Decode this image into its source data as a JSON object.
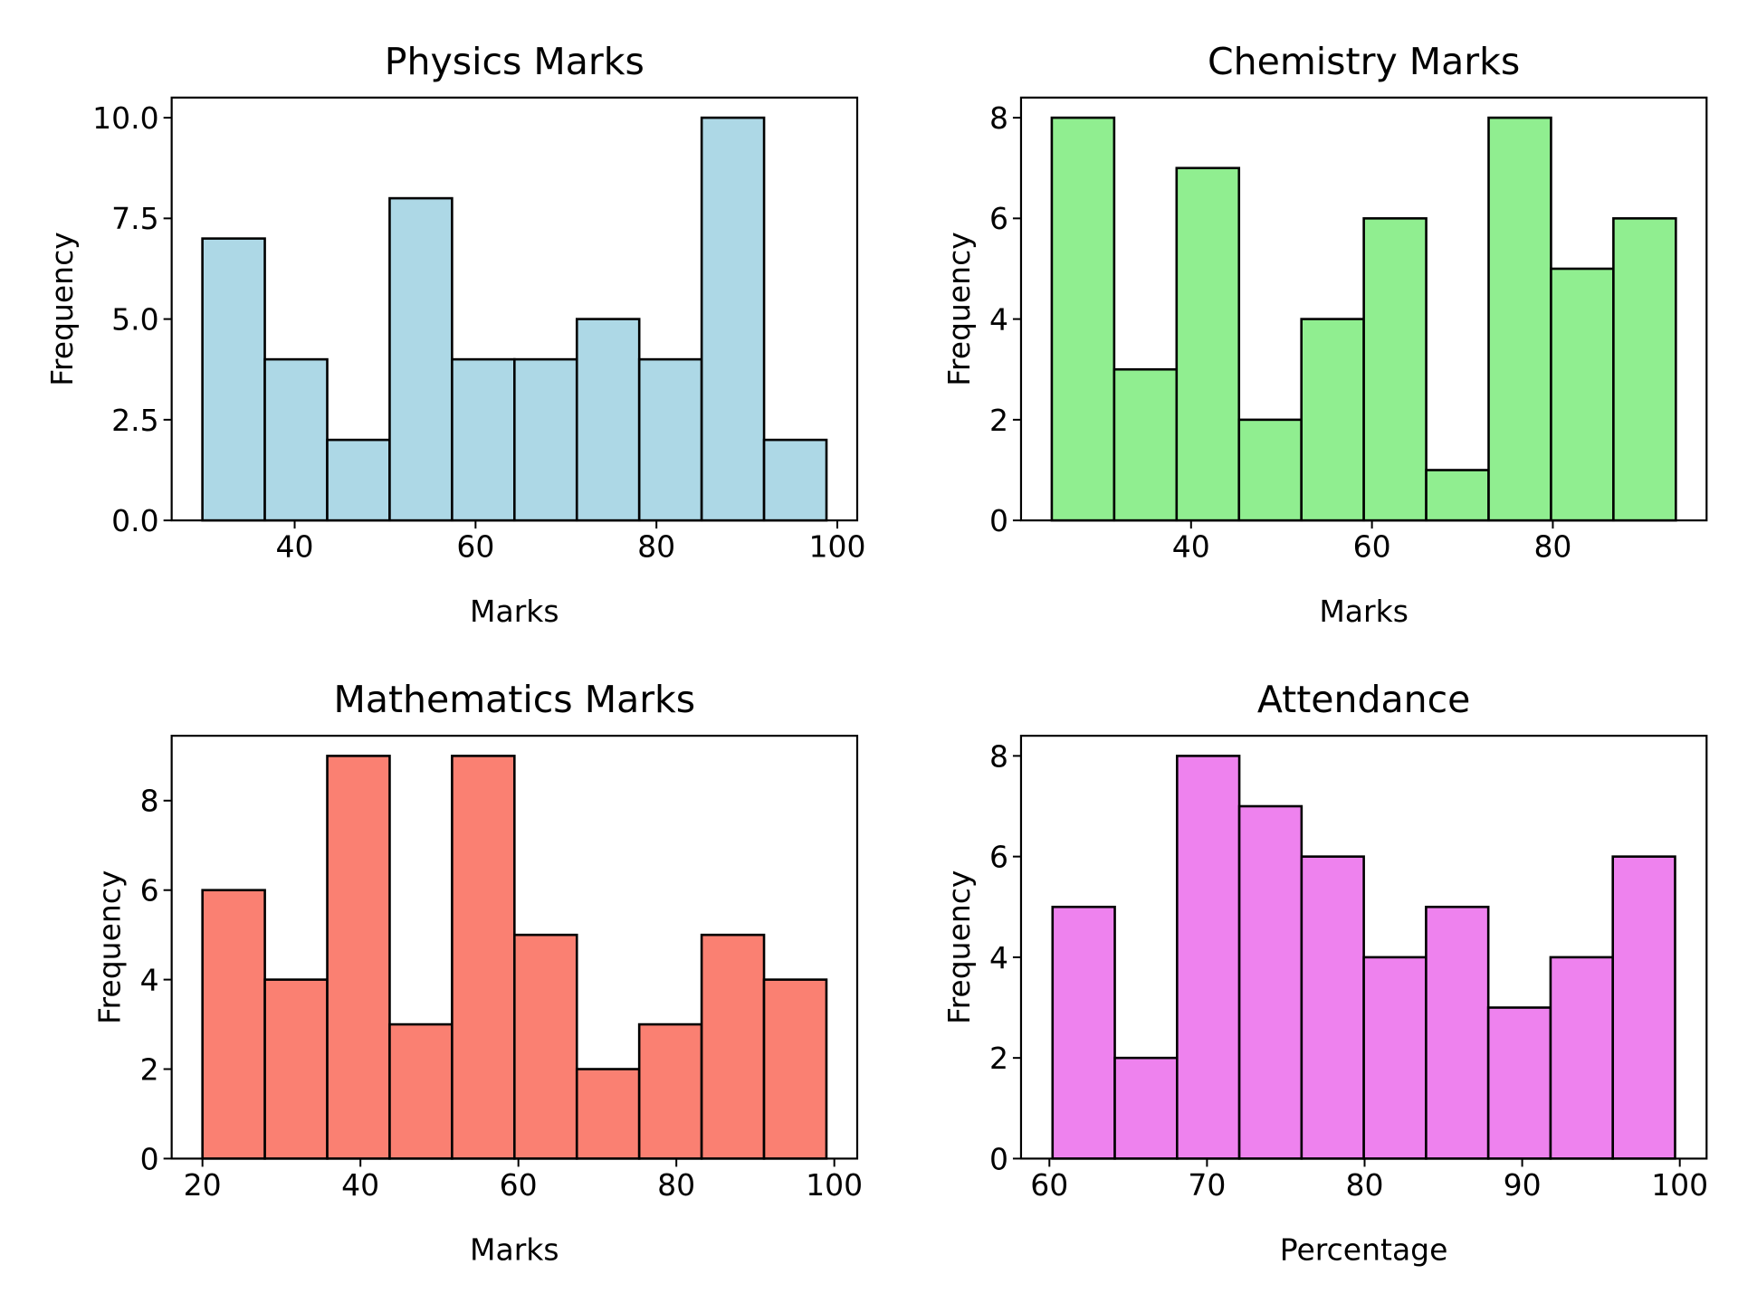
{
  "chart_data": [
    {
      "type": "bar",
      "title": "Physics Marks",
      "xlabel": "Marks",
      "ylabel": "Frequency",
      "color": "#add8e6",
      "edge_color": "#000000",
      "bin_edges": [
        29.8,
        36.7,
        43.6,
        50.5,
        57.4,
        64.3,
        71.2,
        78.1,
        85.0,
        91.9,
        98.8
      ],
      "values": [
        7,
        4,
        2,
        8,
        4,
        4,
        5,
        4,
        10,
        2
      ],
      "xlim": [
        26.4,
        102.2
      ],
      "ylim": [
        0,
        10.5
      ],
      "xticks": [
        40,
        60,
        80,
        100
      ],
      "xtick_labels": [
        "40",
        "60",
        "80",
        "100"
      ],
      "yticks": [
        0,
        2.5,
        5,
        7.5,
        10
      ],
      "ytick_labels": [
        "0.0",
        "2.5",
        "5.0",
        "7.5",
        "10.0"
      ],
      "grid": false
    },
    {
      "type": "bar",
      "title": "Chemistry Marks",
      "xlabel": "Marks",
      "ylabel": "Frequency",
      "color": "#90ee90",
      "edge_color": "#000000",
      "bin_edges": [
        24.6,
        31.5,
        38.4,
        45.3,
        52.2,
        59.1,
        66.0,
        72.9,
        79.8,
        86.7,
        93.6
      ],
      "values": [
        8,
        3,
        7,
        2,
        4,
        6,
        1,
        8,
        5,
        6
      ],
      "xlim": [
        21.2,
        97.0
      ],
      "ylim": [
        0,
        8.4
      ],
      "xticks": [
        40,
        60,
        80
      ],
      "xtick_labels": [
        "40",
        "60",
        "80"
      ],
      "yticks": [
        0,
        2,
        4,
        6,
        8
      ],
      "ytick_labels": [
        "0",
        "2",
        "4",
        "6",
        "8"
      ],
      "grid": false
    },
    {
      "type": "bar",
      "title": "Mathematics Marks",
      "xlabel": "Marks",
      "ylabel": "Frequency",
      "color": "#fa8072",
      "edge_color": "#000000",
      "bin_edges": [
        20.0,
        27.9,
        35.8,
        43.7,
        51.6,
        59.5,
        67.4,
        75.3,
        83.2,
        91.1,
        99.0
      ],
      "values": [
        6,
        4,
        9,
        3,
        9,
        5,
        2,
        3,
        5,
        4
      ],
      "xlim": [
        16.1,
        102.9
      ],
      "ylim": [
        0,
        9.45
      ],
      "xticks": [
        20,
        40,
        60,
        80,
        100
      ],
      "xtick_labels": [
        "20",
        "40",
        "60",
        "80",
        "100"
      ],
      "yticks": [
        0,
        2,
        4,
        6,
        8
      ],
      "ytick_labels": [
        "0",
        "2",
        "4",
        "6",
        "8"
      ],
      "grid": false
    },
    {
      "type": "bar",
      "title": "Attendance",
      "xlabel": "Percentage",
      "ylabel": "Frequency",
      "color": "#ee82ee",
      "edge_color": "#000000",
      "bin_edges": [
        60.2,
        64.15,
        68.1,
        72.05,
        76.0,
        79.95,
        83.9,
        87.85,
        91.8,
        95.75,
        99.7
      ],
      "values": [
        5,
        2,
        8,
        7,
        6,
        4,
        5,
        3,
        4,
        6
      ],
      "xlim": [
        58.2,
        101.7
      ],
      "ylim": [
        0,
        8.4
      ],
      "xticks": [
        60,
        70,
        80,
        90,
        100
      ],
      "xtick_labels": [
        "60",
        "70",
        "80",
        "90",
        "100"
      ],
      "yticks": [
        0,
        2,
        4,
        6,
        8
      ],
      "ytick_labels": [
        "0",
        "2",
        "4",
        "6",
        "8"
      ],
      "grid": false
    }
  ]
}
